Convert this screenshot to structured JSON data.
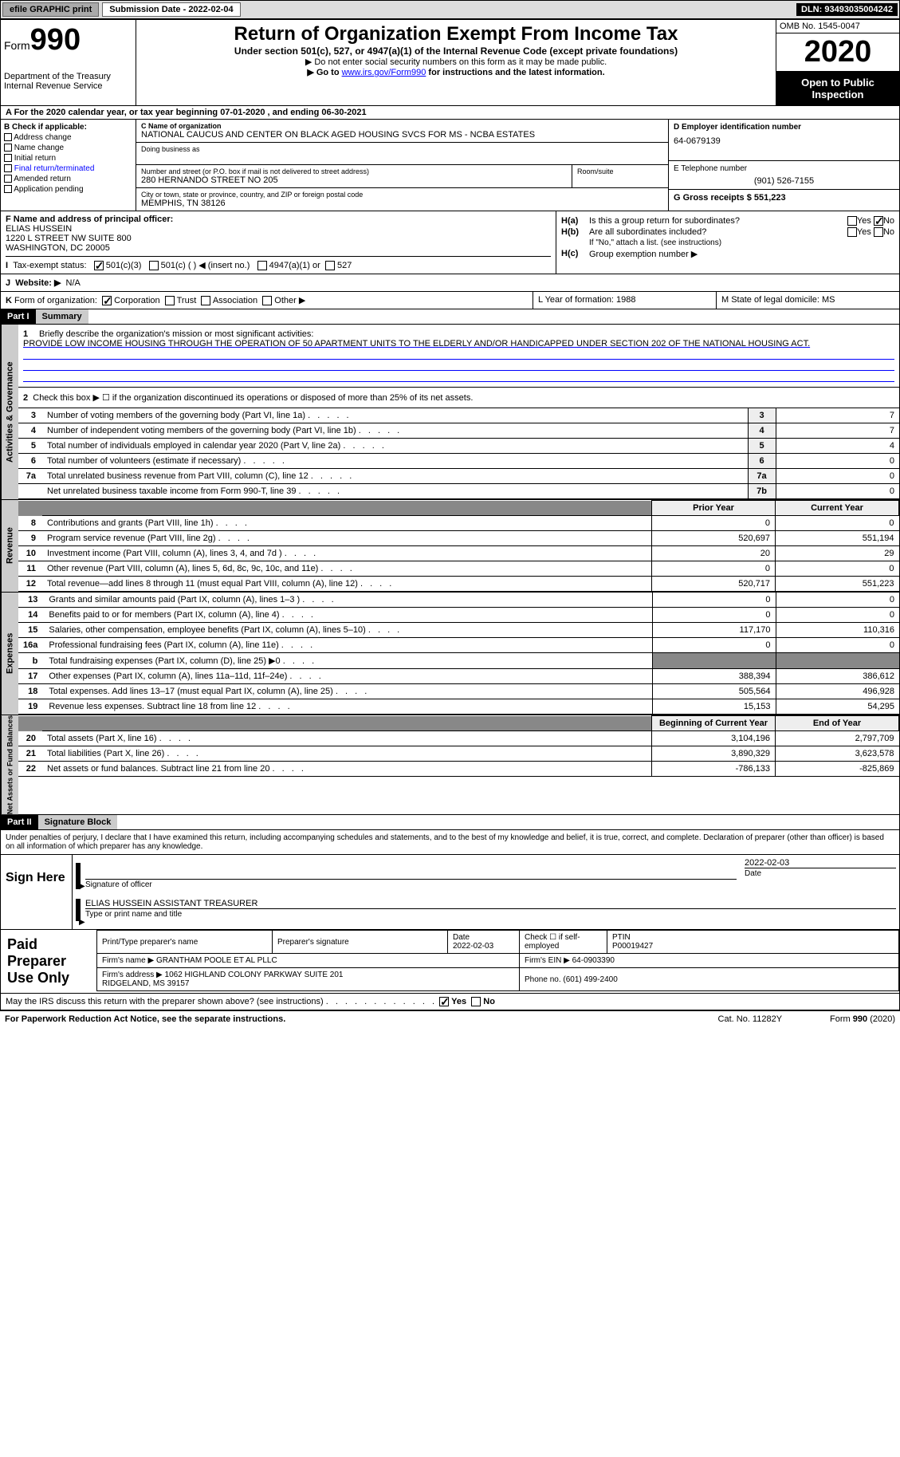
{
  "topbar": {
    "efile": "efile GRAPHIC print",
    "submission_label": "Submission Date - 2022-02-04",
    "dln_label": "DLN: 93493035004242"
  },
  "header": {
    "form_word": "Form",
    "form_num": "990",
    "dept": "Department of the Treasury",
    "irs": "Internal Revenue Service",
    "title": "Return of Organization Exempt From Income Tax",
    "subtitle": "Under section 501(c), 527, or 4947(a)(1) of the Internal Revenue Code (except private foundations)",
    "note1": "▶ Do not enter social security numbers on this form as it may be made public.",
    "note2a": "▶ Go to ",
    "note2_link": "www.irs.gov/Form990",
    "note2b": " for instructions and the latest information.",
    "omb": "OMB No. 1545-0047",
    "year": "2020",
    "open": "Open to Public Inspection"
  },
  "section_a": "A For the 2020 calendar year, or tax year beginning 07-01-2020   , and ending 06-30-2021",
  "col_b": {
    "title": "B Check if applicable:",
    "items": [
      "Address change",
      "Name change",
      "Initial return",
      "Final return/terminated",
      "Amended return",
      "Application pending"
    ]
  },
  "col_c": {
    "name_lbl": "C Name of organization",
    "name": "NATIONAL CAUCUS AND CENTER ON BLACK AGED HOUSING SVCS FOR MS - NCBA ESTATES",
    "dba_lbl": "Doing business as",
    "street_lbl": "Number and street (or P.O. box if mail is not delivered to street address)",
    "street": "280 HERNANDO STREET NO 205",
    "room_lbl": "Room/suite",
    "city_lbl": "City or town, state or province, country, and ZIP or foreign postal code",
    "city": "MEMPHIS, TN  38126"
  },
  "col_d": {
    "ein_lbl": "D Employer identification number",
    "ein": "64-0679139",
    "tel_lbl": "E Telephone number",
    "tel": "(901) 526-7155",
    "gross_lbl": "G Gross receipts $ 551,223"
  },
  "block_f": {
    "lbl": "F Name and address of principal officer:",
    "name": "ELIAS HUSSEIN",
    "addr1": "1220 L STREET NW SUITE 800",
    "addr2": "WASHINGTON, DC  20005"
  },
  "block_h": {
    "ha_lbl": "H(a)",
    "ha_txt": "Is this a group return for subordinates?",
    "ha_yes": "Yes",
    "ha_no": "No",
    "hb_lbl": "H(b)",
    "hb_txt": "Are all subordinates included?",
    "hb_note": "If \"No,\" attach a list. (see instructions)",
    "hc_lbl": "H(c)",
    "hc_txt": "Group exemption number ▶"
  },
  "row_i": {
    "lbl": "I",
    "txt": "Tax-exempt status:",
    "opt1": "501(c)(3)",
    "opt2": "501(c) (  ) ◀ (insert no.)",
    "opt3": "4947(a)(1) or",
    "opt4": "527"
  },
  "row_j": {
    "lbl": "J",
    "txt": "Website: ▶",
    "val": "N/A"
  },
  "row_k": {
    "lbl": "K",
    "txt": "Form of organization:",
    "opts": [
      "Corporation",
      "Trust",
      "Association",
      "Other ▶"
    ],
    "l_txt": "L Year of formation: 1988",
    "m_txt": "M State of legal domicile: MS"
  },
  "part1": {
    "hdr": "Part I",
    "title": "Summary"
  },
  "mission": {
    "num": "1",
    "lbl": "Briefly describe the organization's mission or most significant activities:",
    "txt": "PROVIDE LOW INCOME HOUSING THROUGH THE OPERATION OF 50 APARTMENT UNITS TO THE ELDERLY AND/OR HANDICAPPED UNDER SECTION 202 OF THE NATIONAL HOUSING ACT."
  },
  "line2": "Check this box ▶ ☐  if the organization discontinued its operations or disposed of more than 25% of its net assets.",
  "gov_side": "Activities & Governance",
  "gov_rows": [
    {
      "n": "3",
      "t": "Number of voting members of the governing body (Part VI, line 1a)",
      "b": "3",
      "v": "7"
    },
    {
      "n": "4",
      "t": "Number of independent voting members of the governing body (Part VI, line 1b)",
      "b": "4",
      "v": "7"
    },
    {
      "n": "5",
      "t": "Total number of individuals employed in calendar year 2020 (Part V, line 2a)",
      "b": "5",
      "v": "4"
    },
    {
      "n": "6",
      "t": "Total number of volunteers (estimate if necessary)",
      "b": "6",
      "v": "0"
    },
    {
      "n": "7a",
      "t": "Total unrelated business revenue from Part VIII, column (C), line 12",
      "b": "7a",
      "v": "0"
    },
    {
      "n": "",
      "t": "Net unrelated business taxable income from Form 990-T, line 39",
      "b": "7b",
      "v": "0"
    }
  ],
  "rev_side": "Revenue",
  "rev_hdr": {
    "c1": "Prior Year",
    "c2": "Current Year"
  },
  "rev_rows": [
    {
      "n": "8",
      "t": "Contributions and grants (Part VIII, line 1h)",
      "p": "0",
      "c": "0"
    },
    {
      "n": "9",
      "t": "Program service revenue (Part VIII, line 2g)",
      "p": "520,697",
      "c": "551,194"
    },
    {
      "n": "10",
      "t": "Investment income (Part VIII, column (A), lines 3, 4, and 7d )",
      "p": "20",
      "c": "29"
    },
    {
      "n": "11",
      "t": "Other revenue (Part VIII, column (A), lines 5, 6d, 8c, 9c, 10c, and 11e)",
      "p": "0",
      "c": "0"
    },
    {
      "n": "12",
      "t": "Total revenue—add lines 8 through 11 (must equal Part VIII, column (A), line 12)",
      "p": "520,717",
      "c": "551,223"
    }
  ],
  "exp_side": "Expenses",
  "exp_rows": [
    {
      "n": "13",
      "t": "Grants and similar amounts paid (Part IX, column (A), lines 1–3 )",
      "p": "0",
      "c": "0"
    },
    {
      "n": "14",
      "t": "Benefits paid to or for members (Part IX, column (A), line 4)",
      "p": "0",
      "c": "0"
    },
    {
      "n": "15",
      "t": "Salaries, other compensation, employee benefits (Part IX, column (A), lines 5–10)",
      "p": "117,170",
      "c": "110,316"
    },
    {
      "n": "16a",
      "t": "Professional fundraising fees (Part IX, column (A), line 11e)",
      "p": "0",
      "c": "0"
    },
    {
      "n": "b",
      "t": "Total fundraising expenses (Part IX, column (D), line 25) ▶0",
      "p": "SHADE",
      "c": "SHADE"
    },
    {
      "n": "17",
      "t": "Other expenses (Part IX, column (A), lines 11a–11d, 11f–24e)",
      "p": "388,394",
      "c": "386,612"
    },
    {
      "n": "18",
      "t": "Total expenses. Add lines 13–17 (must equal Part IX, column (A), line 25)",
      "p": "505,564",
      "c": "496,928"
    },
    {
      "n": "19",
      "t": "Revenue less expenses. Subtract line 18 from line 12",
      "p": "15,153",
      "c": "54,295"
    }
  ],
  "na_side": "Net Assets or Fund Balances",
  "na_hdr": {
    "c1": "Beginning of Current Year",
    "c2": "End of Year"
  },
  "na_rows": [
    {
      "n": "20",
      "t": "Total assets (Part X, line 16)",
      "p": "3,104,196",
      "c": "2,797,709"
    },
    {
      "n": "21",
      "t": "Total liabilities (Part X, line 26)",
      "p": "3,890,329",
      "c": "3,623,578"
    },
    {
      "n": "22",
      "t": "Net assets or fund balances. Subtract line 21 from line 20",
      "p": "-786,133",
      "c": "-825,869"
    }
  ],
  "part2": {
    "hdr": "Part II",
    "title": "Signature Block"
  },
  "penalty": "Under penalties of perjury, I declare that I have examined this return, including accompanying schedules and statements, and to the best of my knowledge and belief, it is true, correct, and complete. Declaration of preparer (other than officer) is based on all information of which preparer has any knowledge.",
  "sign": {
    "here": "Sign Here",
    "date": "2022-02-03",
    "sig_lbl": "Signature of officer",
    "date_lbl": "Date",
    "name": "ELIAS HUSSEIN  ASSISTANT TREASURER",
    "name_lbl": "Type or print name and title"
  },
  "prep": {
    "lbl": "Paid Preparer Use Only",
    "h1": "Print/Type preparer's name",
    "h2": "Preparer's signature",
    "h3": "Date",
    "h3v": "2022-02-03",
    "h4": "Check ☐ if self-employed",
    "h5": "PTIN",
    "h5v": "P00019427",
    "firm_lbl": "Firm's name   ▶",
    "firm": "GRANTHAM POOLE ET AL PLLC",
    "fein_lbl": "Firm's EIN ▶",
    "fein": "64-0903390",
    "addr_lbl": "Firm's address ▶",
    "addr": "1062 HIGHLAND COLONY PARKWAY SUITE 201\nRIDGELAND, MS  39157",
    "phone_lbl": "Phone no.",
    "phone": "(601) 499-2400"
  },
  "discuss": {
    "txt": "May the IRS discuss this return with the preparer shown above? (see instructions)",
    "yes": "Yes",
    "no": "No"
  },
  "footer": {
    "l": "For Paperwork Reduction Act Notice, see the separate instructions.",
    "m": "Cat. No. 11282Y",
    "r": "Form 990 (2020)"
  }
}
